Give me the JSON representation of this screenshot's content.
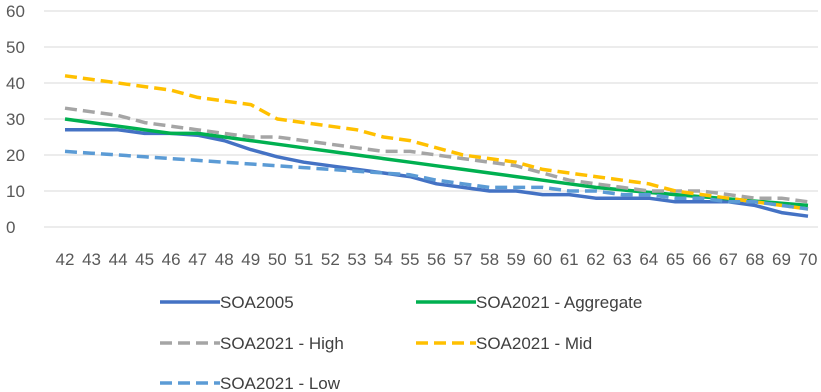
{
  "chart_data": {
    "type": "line",
    "title": "",
    "xlabel": "",
    "ylabel": "",
    "x": [
      42,
      43,
      44,
      45,
      46,
      47,
      48,
      49,
      50,
      51,
      52,
      53,
      54,
      55,
      56,
      57,
      58,
      59,
      60,
      61,
      62,
      63,
      64,
      65,
      66,
      67,
      68,
      69,
      70
    ],
    "ylim": [
      0,
      60
    ],
    "yticks": [
      0,
      10,
      20,
      30,
      40,
      50,
      60
    ],
    "grid": "horizontal",
    "legend_position": "bottom",
    "series": [
      {
        "name": "SOA2005",
        "color": "#4472C4",
        "dash": "solid",
        "values": [
          27,
          27,
          27,
          26,
          26,
          25.5,
          24,
          21.5,
          19.5,
          18,
          17,
          16,
          15,
          14,
          12,
          11,
          10,
          10,
          9,
          9,
          8,
          8,
          8,
          7,
          7,
          7,
          6,
          4,
          3
        ]
      },
      {
        "name": "SOA2021 - Aggregate",
        "color": "#00B050",
        "dash": "solid",
        "values": [
          30,
          29,
          28,
          27,
          26,
          26,
          25,
          24,
          23,
          22,
          21,
          20,
          19,
          18,
          17,
          16,
          15,
          14,
          13,
          12,
          11,
          10.3,
          9.6,
          9,
          8.4,
          7.8,
          7.2,
          6.6,
          6
        ]
      },
      {
        "name": "SOA2021 - High",
        "color": "#A5A5A5",
        "dash": "dashed",
        "values": [
          33,
          32,
          31,
          29,
          28,
          27,
          26,
          25,
          25,
          24,
          23,
          22,
          21,
          21,
          20,
          19,
          18,
          17,
          15,
          13,
          12,
          11,
          10,
          10,
          10,
          9,
          8,
          8,
          7
        ]
      },
      {
        "name": "SOA2021 - Mid",
        "color": "#FFC000",
        "dash": "dashed",
        "values": [
          42,
          41,
          40,
          39,
          38,
          36,
          35,
          34,
          30,
          29,
          28,
          27,
          25,
          24,
          22,
          20,
          19,
          18,
          16,
          15,
          14,
          13,
          12,
          10,
          9,
          8,
          7,
          6,
          5
        ]
      },
      {
        "name": "SOA2021 - Low",
        "color": "#5B9BD5",
        "dash": "dashed",
        "values": [
          21,
          20.5,
          20,
          19.5,
          19,
          18.5,
          18,
          17.5,
          17,
          16.5,
          16,
          15.5,
          15,
          14.5,
          13,
          12,
          11,
          11,
          11,
          10,
          10,
          9,
          9,
          8,
          8,
          7,
          7,
          6,
          5
        ]
      }
    ]
  }
}
